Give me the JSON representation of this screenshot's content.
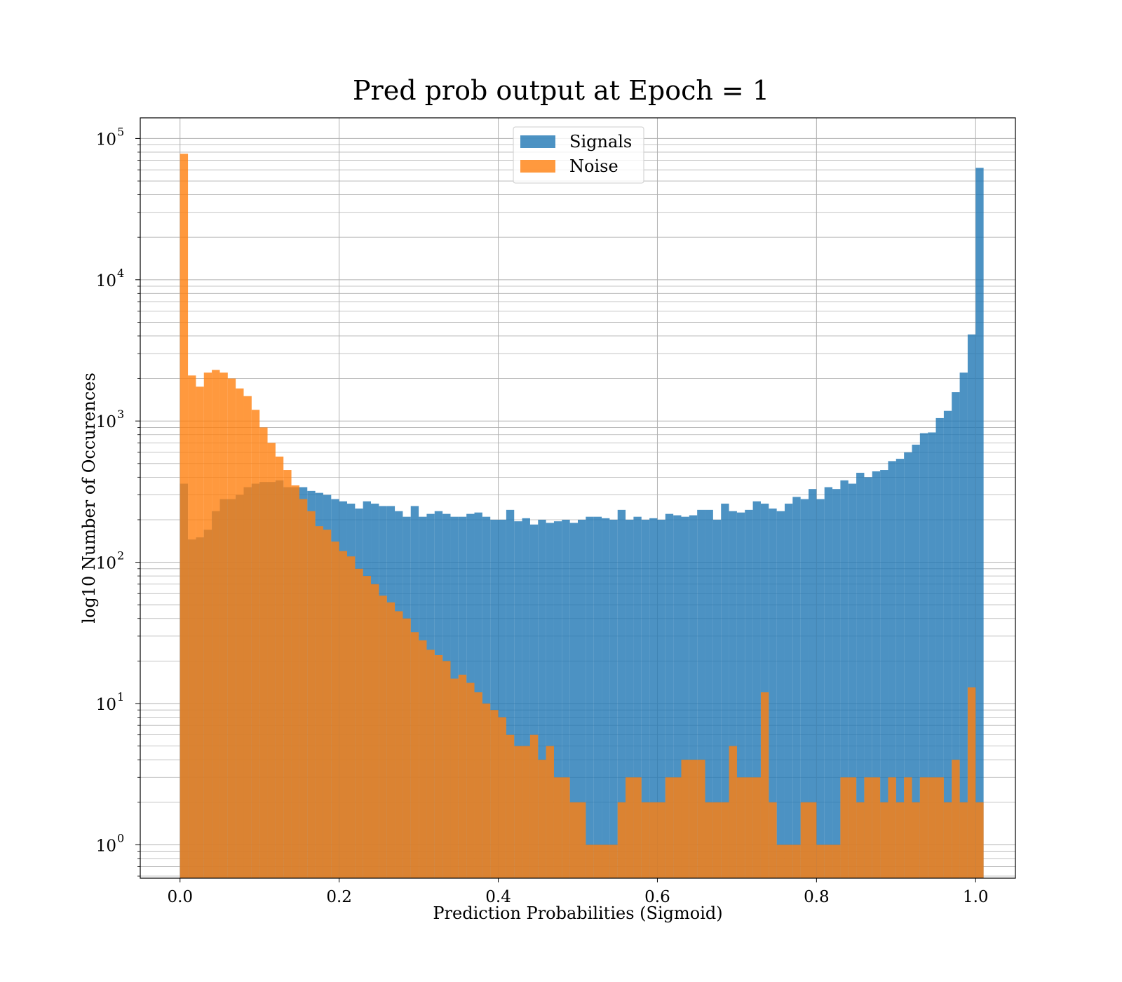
{
  "chart_data": {
    "type": "bar",
    "title": "Pred prob output at Epoch = 1",
    "xlabel": "Prediction Probabilities (Sigmoid)",
    "ylabel": "log10 Number of Occurences",
    "x_ticks": [
      "0.0",
      "0.2",
      "0.4",
      "0.6",
      "0.8",
      "1.0"
    ],
    "y_ticks": [
      {
        "base": "10",
        "exp": "0"
      },
      {
        "base": "10",
        "exp": "1"
      },
      {
        "base": "10",
        "exp": "2"
      },
      {
        "base": "10",
        "exp": "3"
      },
      {
        "base": "10",
        "exp": "4"
      },
      {
        "base": "10",
        "exp": "5"
      }
    ],
    "xlim": [
      -0.05,
      1.05
    ],
    "ylim": [
      0.58,
      140000
    ],
    "yscale": "log",
    "grid": true,
    "legend_position": "top-center",
    "bin_start": 0.0,
    "bin_width": 0.01,
    "series": [
      {
        "name": "Signals",
        "color": "#1f77b4",
        "values": [
          360,
          145,
          150,
          170,
          230,
          280,
          280,
          300,
          340,
          360,
          370,
          370,
          380,
          340,
          340,
          340,
          320,
          310,
          300,
          280,
          270,
          260,
          240,
          270,
          260,
          250,
          250,
          230,
          210,
          250,
          210,
          220,
          230,
          220,
          210,
          210,
          220,
          225,
          210,
          200,
          200,
          235,
          195,
          205,
          185,
          200,
          190,
          195,
          200,
          190,
          200,
          210,
          210,
          205,
          200,
          235,
          200,
          210,
          200,
          205,
          200,
          220,
          215,
          210,
          215,
          235,
          235,
          200,
          260,
          230,
          225,
          235,
          270,
          260,
          240,
          230,
          260,
          290,
          280,
          330,
          280,
          340,
          330,
          380,
          360,
          430,
          400,
          440,
          450,
          520,
          540,
          600,
          680,
          820,
          830,
          1050,
          1180,
          1600,
          2200,
          4100,
          62000
        ]
      },
      {
        "name": "Noise",
        "color": "#ff7f0e",
        "values": [
          78000,
          2100,
          1750,
          2200,
          2300,
          2200,
          2000,
          1700,
          1500,
          1200,
          900,
          700,
          560,
          450,
          350,
          280,
          230,
          180,
          170,
          140,
          120,
          110,
          90,
          80,
          70,
          58,
          52,
          45,
          40,
          32,
          28,
          24,
          22,
          20,
          15,
          16,
          14,
          12,
          10,
          9,
          8,
          6,
          5,
          5,
          6,
          4,
          5,
          3,
          3,
          2,
          2,
          1,
          1,
          1,
          1,
          2,
          3,
          3,
          2,
          2,
          2,
          3,
          3,
          4,
          4,
          4,
          2,
          2,
          2,
          5,
          3,
          3,
          3,
          12,
          2,
          1,
          1,
          1,
          2,
          2,
          1,
          1,
          1,
          3,
          3,
          2,
          3,
          3,
          2,
          3,
          2,
          3,
          2,
          3,
          3,
          3,
          2,
          4,
          2,
          13,
          2
        ]
      }
    ]
  }
}
